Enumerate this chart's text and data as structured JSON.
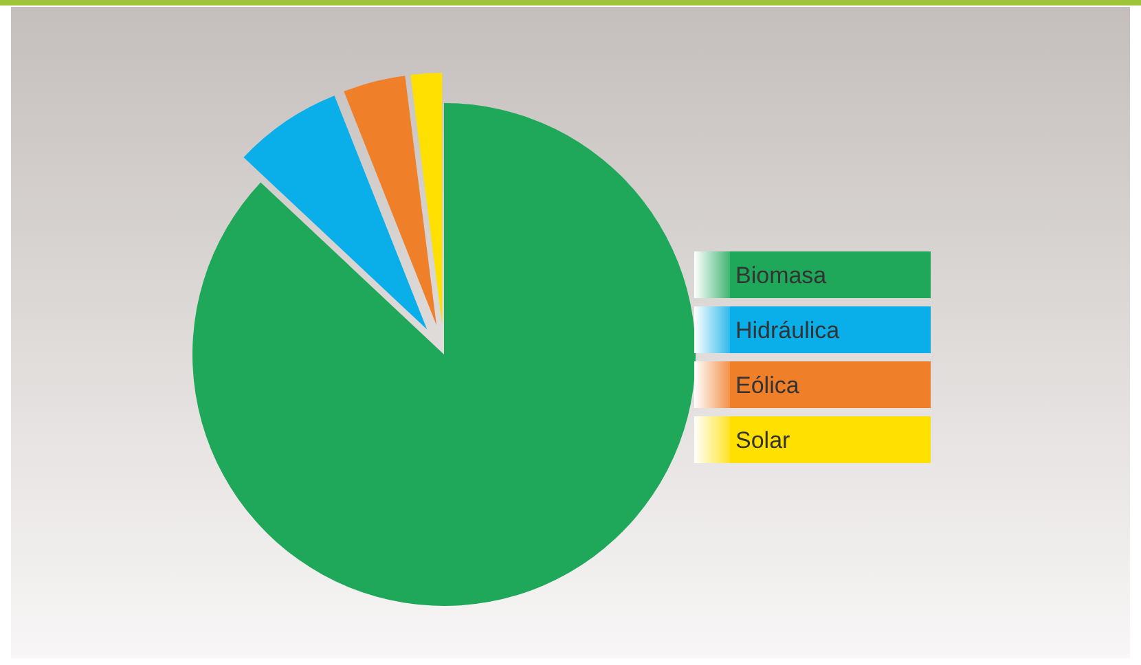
{
  "chart_data": {
    "type": "pie",
    "categories": [
      "Biomasa",
      "Hidráulica",
      "Eólica",
      "Solar"
    ],
    "values": [
      87,
      7,
      4,
      2
    ],
    "colors": [
      "#1fa85a",
      "#0aaee8",
      "#f07f2a",
      "#ffe000"
    ],
    "legend": "right"
  }
}
